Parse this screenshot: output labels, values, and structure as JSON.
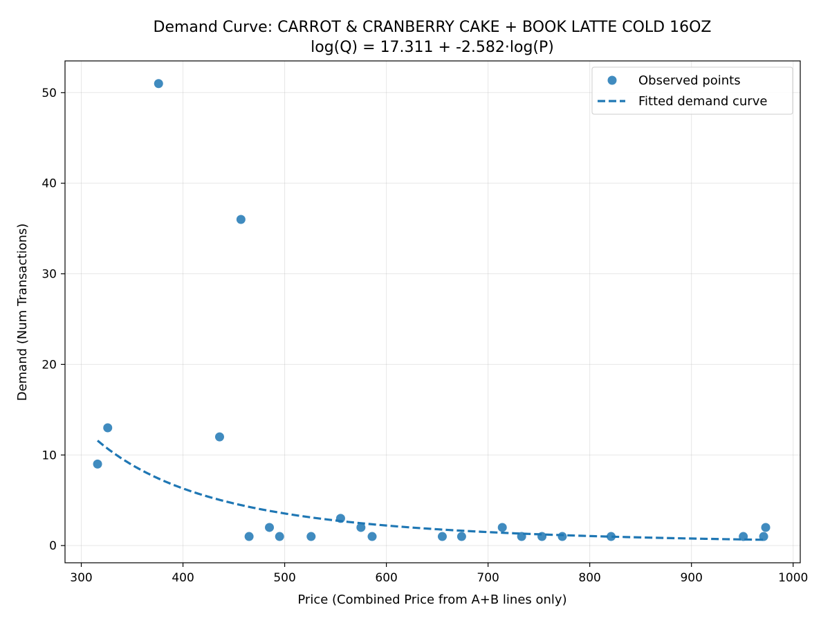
{
  "chart_data": {
    "type": "scatter",
    "title": "Demand Curve: CARROT & CRANBERRY CAKE + BOOK LATTE COLD 16OZ",
    "subtitle": "log(Q) = 17.311 + -2.582·log(P)",
    "xlabel": "Price (Combined Price from A+B lines only)",
    "ylabel": "Demand (Num Transactions)",
    "xlim": [
      284,
      1007
    ],
    "ylim": [
      -1.9,
      53.5
    ],
    "xticks": [
      300,
      400,
      500,
      600,
      700,
      800,
      900,
      1000
    ],
    "yticks": [
      0,
      10,
      20,
      30,
      40,
      50
    ],
    "grid": true,
    "legend_position": "top-right",
    "series": [
      {
        "name": "Observed points",
        "kind": "scatter",
        "color": "#1f77b4",
        "points": [
          {
            "x": 316,
            "y": 9
          },
          {
            "x": 326,
            "y": 13
          },
          {
            "x": 376,
            "y": 51
          },
          {
            "x": 436,
            "y": 12
          },
          {
            "x": 457,
            "y": 36
          },
          {
            "x": 465,
            "y": 1
          },
          {
            "x": 485,
            "y": 2
          },
          {
            "x": 495,
            "y": 1
          },
          {
            "x": 526,
            "y": 1
          },
          {
            "x": 555,
            "y": 3
          },
          {
            "x": 575,
            "y": 2
          },
          {
            "x": 586,
            "y": 1
          },
          {
            "x": 655,
            "y": 1
          },
          {
            "x": 674,
            "y": 1
          },
          {
            "x": 714,
            "y": 2
          },
          {
            "x": 733,
            "y": 1
          },
          {
            "x": 753,
            "y": 1
          },
          {
            "x": 773,
            "y": 1
          },
          {
            "x": 821,
            "y": 1
          },
          {
            "x": 951,
            "y": 1
          },
          {
            "x": 971,
            "y": 1
          },
          {
            "x": 973,
            "y": 2
          }
        ]
      },
      {
        "name": "Fitted demand curve",
        "kind": "line",
        "style": "dashed",
        "color": "#1f77b4",
        "equation": {
          "intercept": 17.311,
          "slope": -2.582
        },
        "x_range": [
          316,
          973
        ]
      }
    ]
  }
}
